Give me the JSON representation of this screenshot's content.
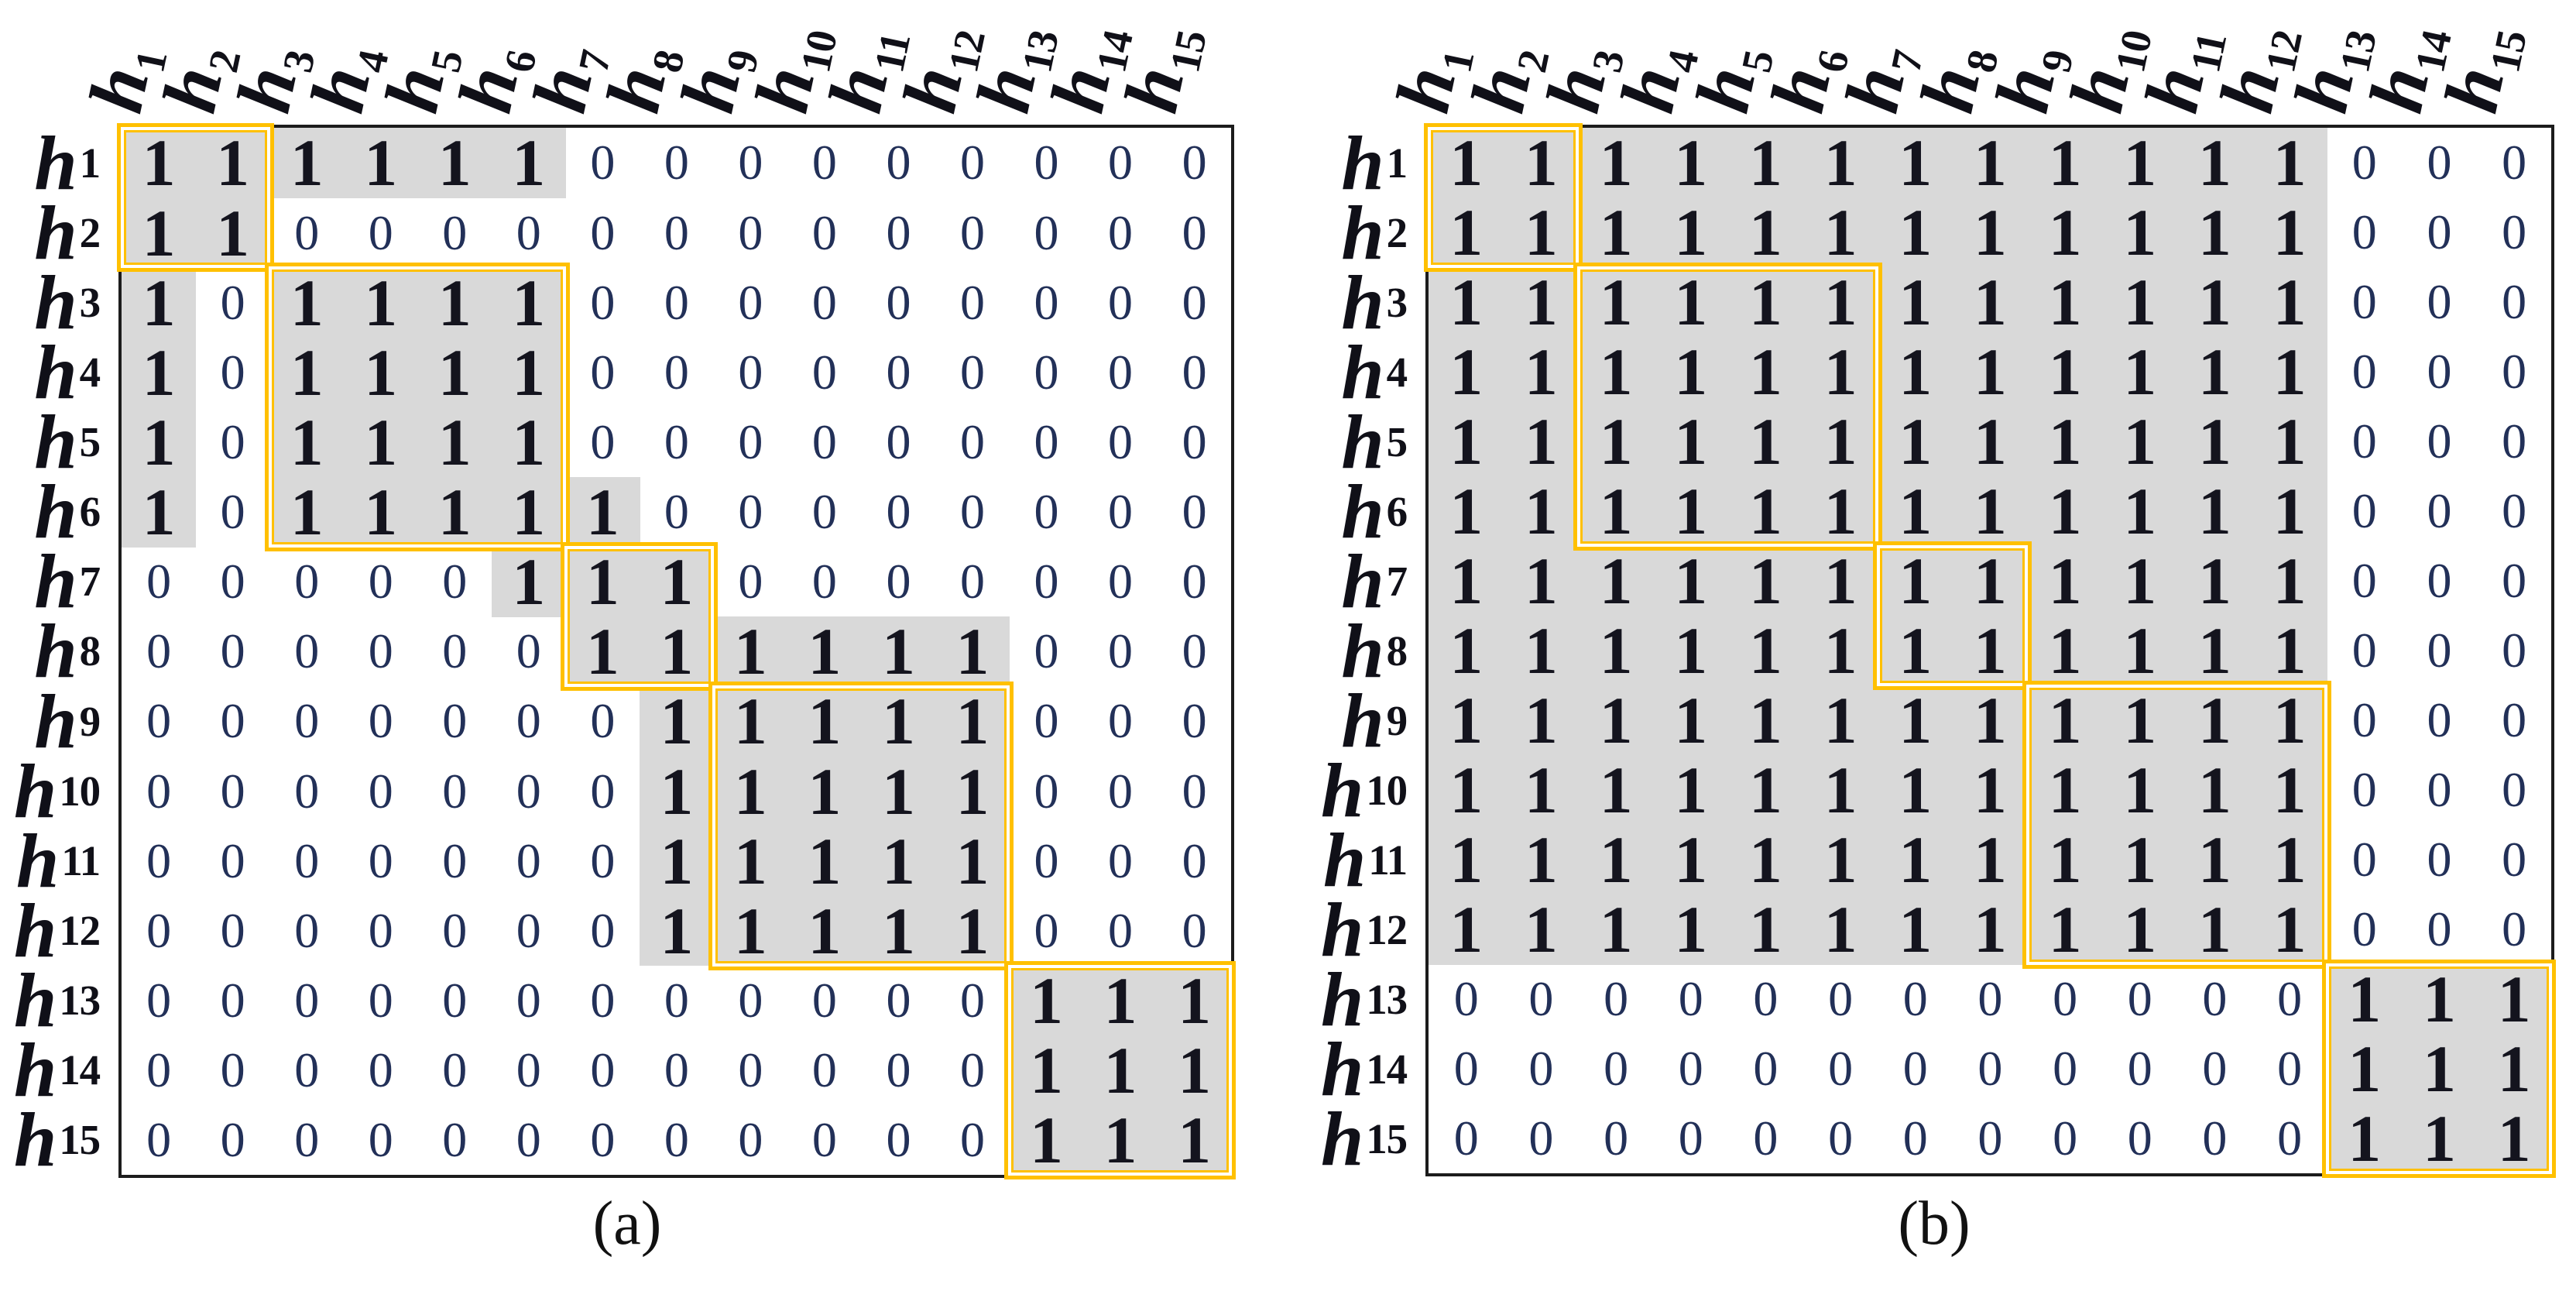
{
  "figure": {
    "captions": {
      "a": "(a)",
      "b": "(b)"
    },
    "label_base": "h"
  },
  "colors": {
    "module_outline": "#FFC000",
    "shade": "#D9D9D9",
    "matrix_border": "#1C1C1C",
    "one_digit": "#14141E",
    "zero_digit": "#223058"
  },
  "chart_data": [
    {
      "type": "heatmap",
      "title": "(a)",
      "rows": [
        "h1",
        "h2",
        "h3",
        "h4",
        "h5",
        "h6",
        "h7",
        "h8",
        "h9",
        "h10",
        "h11",
        "h12",
        "h13",
        "h14",
        "h15"
      ],
      "cols": [
        "h1",
        "h2",
        "h3",
        "h4",
        "h5",
        "h6",
        "h7",
        "h8",
        "h9",
        "h10",
        "h11",
        "h12",
        "h13",
        "h14",
        "h15"
      ],
      "matrix": [
        "111111000000000",
        "110000000000000",
        "101111000000000",
        "101111000000000",
        "101111000000000",
        "101111100000000",
        "000001110000000",
        "000000111111000",
        "000000011111000",
        "000000011111000",
        "000000011111000",
        "000000011111000",
        "000000000000111",
        "000000000000111",
        "000000000000111"
      ],
      "modules_outlined": [
        [
          1,
          2
        ],
        [
          3,
          6
        ],
        [
          7,
          8
        ],
        [
          9,
          12
        ],
        [
          13,
          15
        ]
      ],
      "shading_rule": "cells with value 1 are shaded gray",
      "legend": "binary matrix; yellow double-line boxes mark diagonal module blocks h1-h2, h3-h6, h7-h8, h9-h12, h13-h15"
    },
    {
      "type": "heatmap",
      "title": "(b)",
      "rows": [
        "h1",
        "h2",
        "h3",
        "h4",
        "h5",
        "h6",
        "h7",
        "h8",
        "h9",
        "h10",
        "h11",
        "h12",
        "h13",
        "h14",
        "h15"
      ],
      "cols": [
        "h1",
        "h2",
        "h3",
        "h4",
        "h5",
        "h6",
        "h7",
        "h8",
        "h9",
        "h10",
        "h11",
        "h12",
        "h13",
        "h14",
        "h15"
      ],
      "matrix": [
        "111111111111000",
        "111111111111000",
        "111111111111000",
        "111111111111000",
        "111111111111000",
        "111111111111000",
        "111111111111000",
        "111111111111000",
        "111111111111000",
        "111111111111000",
        "111111111111000",
        "111111111111000",
        "000000000000111",
        "000000000000111",
        "000000000000111"
      ],
      "modules_outlined": [
        [
          1,
          2
        ],
        [
          3,
          6
        ],
        [
          7,
          8
        ],
        [
          9,
          12
        ],
        [
          13,
          15
        ]
      ],
      "shading_rule": "cells with value 1 are shaded gray",
      "legend": "binary matrix; yellow double-line boxes mark diagonal module blocks h1-h2, h3-h6, h7-h8, h9-h12, h13-h15"
    }
  ]
}
